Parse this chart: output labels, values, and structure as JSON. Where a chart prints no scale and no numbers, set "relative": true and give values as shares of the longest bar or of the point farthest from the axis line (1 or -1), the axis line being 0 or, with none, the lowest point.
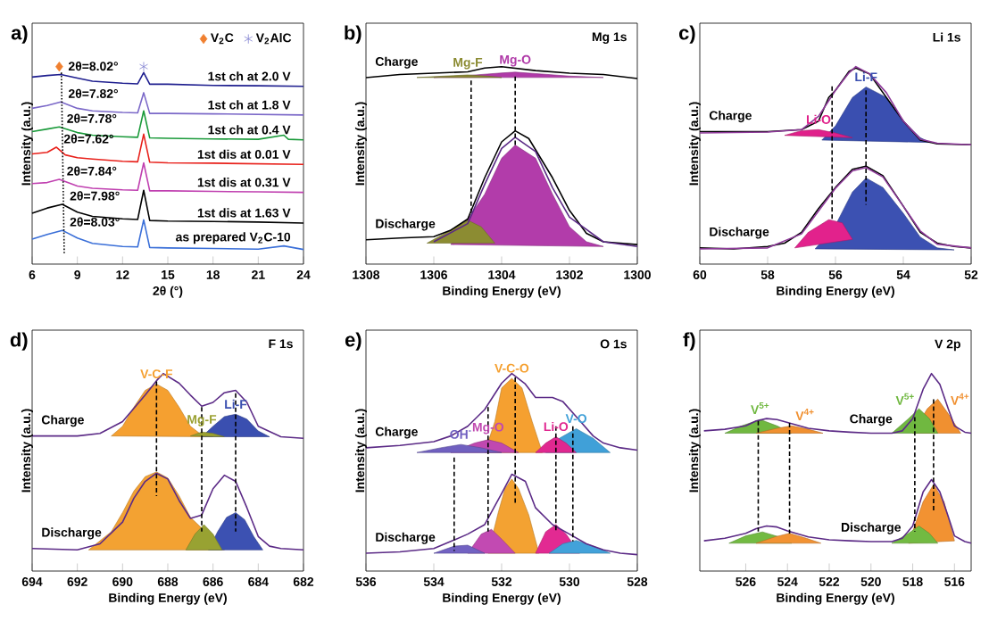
{
  "chart_data": [
    {
      "type": "line",
      "title": "a)",
      "xlabel": "2θ (°)",
      "ylabel": "Intensity (a.u.)",
      "relative": true,
      "xlim": [
        6,
        24
      ],
      "xticks": [
        6,
        9,
        12,
        15,
        18,
        21,
        24
      ],
      "legend": "top right",
      "annotations": [
        {
          "text": "2θ=8.02°",
          "x": 7.9,
          "y": 0.96
        },
        {
          "text": "2θ=7.82°",
          "x": 7.9,
          "y": 0.821
        },
        {
          "text": "2θ=7.78°",
          "x": 7.8,
          "y": 0.695
        },
        {
          "text": "2θ=7.62°",
          "x": 7.6,
          "y": 0.592
        },
        {
          "text": "2θ=7.84°",
          "x": 7.8,
          "y": 0.429
        },
        {
          "text": "2θ=7.98°",
          "x": 8,
          "y": 0.303
        },
        {
          "text": "2θ=8.03°",
          "x": 8,
          "y": 0.171
        }
      ],
      "series": [
        {
          "name": "1st ch at 2.0 V",
          "color": "#1f1f8f",
          "x": [
            6,
            7,
            7.9,
            9,
            10,
            12,
            13.0,
            13.4,
            13.8,
            15,
            18,
            21,
            24
          ],
          "values": [
            0.947,
            0.955,
            0.96,
            0.942,
            0.926,
            0.916,
            0.913,
            0.97,
            0.911,
            0.911,
            0.905,
            0.903,
            0.9
          ]
        },
        {
          "name": "1st ch at 1.8 V",
          "color": "#7b68c8",
          "x": [
            6,
            7,
            7.9,
            9,
            10,
            12,
            13.0,
            13.4,
            13.8,
            15,
            18,
            21,
            24
          ],
          "values": [
            0.789,
            0.803,
            0.821,
            0.789,
            0.776,
            0.768,
            0.766,
            0.868,
            0.763,
            0.763,
            0.761,
            0.758,
            0.755
          ]
        },
        {
          "name": "1st ch at 0.4 V",
          "color": "#1a9a3a",
          "x": [
            6,
            7,
            7.8,
            9,
            10,
            12,
            13.0,
            13.4,
            13.8,
            15,
            18,
            21,
            22.7,
            23,
            24
          ],
          "values": [
            0.671,
            0.684,
            0.695,
            0.666,
            0.653,
            0.645,
            0.642,
            0.776,
            0.639,
            0.637,
            0.634,
            0.632,
            0.653,
            0.632,
            0.629
          ]
        },
        {
          "name": "1st dis at 0.01 V",
          "color": "#e8201a",
          "x": [
            6,
            7,
            7.6,
            8.2,
            9,
            10,
            12,
            13.0,
            13.4,
            13.8,
            15,
            18,
            21,
            24
          ],
          "values": [
            0.558,
            0.566,
            0.592,
            0.553,
            0.539,
            0.532,
            0.521,
            0.518,
            0.658,
            0.516,
            0.513,
            0.511,
            0.508,
            0.505
          ]
        },
        {
          "name": "1st dis at 0.31 V",
          "color": "#c040b0",
          "x": [
            6,
            7,
            7.8,
            9,
            10,
            12,
            13.0,
            13.4,
            13.8,
            15,
            18,
            21,
            24
          ],
          "values": [
            0.408,
            0.413,
            0.429,
            0.395,
            0.384,
            0.376,
            0.374,
            0.513,
            0.371,
            0.371,
            0.368,
            0.366,
            0.363
          ]
        },
        {
          "name": "1st dis at 1.63 V",
          "color": "#000000",
          "x": [
            6,
            7,
            8,
            9,
            10,
            12,
            13.0,
            13.4,
            13.8,
            15,
            18,
            21,
            24
          ],
          "values": [
            0.258,
            0.284,
            0.303,
            0.263,
            0.242,
            0.229,
            0.226,
            0.374,
            0.221,
            0.218,
            0.216,
            0.213,
            0.208
          ]
        },
        {
          "name": "as prepared V$_{2}$C-10",
          "color": "#3a6fd8",
          "x": [
            6,
            7,
            8,
            9,
            10,
            12,
            13.0,
            13.4,
            13.8,
            15,
            18,
            21,
            22.7,
            24
          ],
          "values": [
            0.126,
            0.15,
            0.171,
            0.132,
            0.105,
            0.089,
            0.087,
            0.224,
            0.084,
            0.082,
            0.079,
            0.076,
            0.092,
            0.074
          ]
        },
        {
          "color": "#000000",
          "line_style": "dotted",
          "x": [
            7.94,
            8.13
          ],
          "values": [
            0.97,
            0.05
          ]
        },
        {
          "name": "V$_{2}$C",
          "type": "scatter",
          "marker": "diamond",
          "color": "#f08030",
          "x": [
            7.8
          ],
          "values": [
            1.0
          ]
        },
        {
          "name": "V$_{2}$AlC",
          "type": "scatter",
          "marker": "cross",
          "color": "#8080d0",
          "x": [
            13.4
          ],
          "values": [
            1.0
          ]
        }
      ]
    },
    {
      "type": "line",
      "title": "b)",
      "xlabel": "Binding Energy (eV)",
      "ylabel": "Intensity (a.u.)",
      "relative": true,
      "xlim": [
        1308,
        1300
      ],
      "xticks": [
        1308,
        1306,
        1304,
        1302,
        1300
      ],
      "annotations": [
        "Mg 1s"
      ],
      "series": [
        {
          "name": "Mg-F",
          "type": "area",
          "color": "#8a8a30",
          "x": [
            1306.5,
            1305.7,
            1305,
            1304.4,
            1304
          ],
          "values": [
            0.945,
            0.952,
            0.958,
            0.952,
            0.945
          ]
        },
        {
          "name": "Mg-O",
          "type": "area",
          "color": "#b03aa8",
          "x": [
            1306,
            1305,
            1304,
            1303.6,
            1303,
            1302,
            1301
          ],
          "values": [
            0.945,
            0.955,
            0.968,
            0.972,
            0.965,
            0.952,
            0.945
          ]
        },
        {
          "type": "area",
          "color": "#8c8c32",
          "x": [
            1306.2,
            1305.5,
            1305,
            1304.6,
            1304.2
          ],
          "values": [
            0.106,
            0.172,
            0.222,
            0.189,
            0.106
          ]
        },
        {
          "type": "area",
          "color": "#b23caa",
          "x": [
            1305.5,
            1305,
            1304.5,
            1304,
            1303.6,
            1303,
            1302.5,
            1302,
            1301.5,
            1301
          ],
          "values": [
            0.099,
            null,
            0.354,
            0.536,
            0.603,
            0.536,
            0.354,
            0.189,
            0.113,
            0.089
          ]
        },
        {
          "name": "Charge",
          "color": "#000000",
          "x": [
            1308,
            1307,
            1306,
            1305,
            1304.5,
            1304,
            1303,
            1302,
            1301,
            1300
          ],
          "values": [
            0.944,
            0.96,
            0.967,
            0.974,
            0.993,
            1.0,
            0.98,
            0.967,
            0.96,
            0.94
          ]
        },
        {
          "name": "Discharge",
          "color": "#000000",
          "x": [
            1308,
            1307,
            1306,
            1305.5,
            1305,
            1304.5,
            1304,
            1303.6,
            1303.2,
            1302.5,
            1302,
            1301.5,
            1301,
            1300
          ],
          "values": [
            0.123,
            0.132,
            0.139,
            0.172,
            0.228,
            0.437,
            0.619,
            0.675,
            0.636,
            0.437,
            0.272,
            0.156,
            0.113,
            0.099
          ]
        },
        {
          "color": "#5b2a86",
          "x": [
            1306,
            1305,
            1304.5,
            1304,
            1303.6,
            1303,
            1302.5,
            1302,
            1301,
            1300
          ],
          "values": [
            0.113,
            0.205,
            0.404,
            0.586,
            0.642,
            0.57,
            0.387,
            0.238,
            0.113,
            0.089
          ]
        },
        {
          "color": "#000000",
          "line_style": "dashed",
          "x": [
            1304.9,
            1304.9
          ],
          "values": [
            0.93,
            0.25
          ]
        },
        {
          "color": "#000000",
          "line_style": "dashed",
          "x": [
            1303.6,
            1303.6
          ],
          "values": [
            0.95,
            0.6
          ]
        }
      ]
    },
    {
      "type": "line",
      "title": "c)",
      "xlabel": "Binding Energy (eV)",
      "ylabel": "Intensity (a.u.)",
      "relative": true,
      "xlim": [
        60,
        52
      ],
      "xticks": [
        60,
        58,
        56,
        54,
        52
      ],
      "annotations": [
        "Li 1s"
      ],
      "series": [
        {
          "name": "Li-O",
          "type": "area",
          "color": "#e0208a",
          "x": [
            57.5,
            57,
            56.5,
            56,
            55.5
          ],
          "values": [
            0.652,
            0.676,
            0.681,
            0.664,
            0.64
          ]
        },
        {
          "name": "Li-F",
          "type": "area",
          "color": "#3a4fb0",
          "x": [
            56.4,
            56,
            55.5,
            55.1,
            54.5,
            54,
            53.5,
            53.2
          ],
          "values": [
            0.628,
            0.7,
            0.844,
            0.897,
            0.844,
            0.724,
            0.64,
            0.616
          ]
        },
        {
          "type": "area",
          "color": "#3c51b2",
          "x": [
            56.6,
            56,
            55.5,
            55.1,
            54.6,
            54,
            53.5,
            53,
            52.5
          ],
          "values": [
            0.077,
            0.197,
            0.365,
            0.436,
            0.388,
            0.257,
            0.137,
            0.082,
            0.072
          ]
        },
        {
          "type": "area",
          "color": "#e2228c",
          "x": [
            57.2,
            56.8,
            56.2,
            55.8,
            55.5
          ],
          "values": [
            0.082,
            0.161,
            0.225,
            0.209,
            0.125
          ]
        },
        {
          "name": "Charge",
          "color": "#000000",
          "x": [
            60,
            58,
            57,
            56.5,
            56.2,
            56,
            55.6,
            55.4,
            55,
            54.5,
            54,
            53.5,
            53,
            52
          ],
          "values": [
            0.671,
            0.671,
            0.681,
            0.724,
            0.844,
            0.88,
            0.976,
            0.993,
            0.964,
            null,
            0.724,
            0.628,
            0.609,
            0.604
          ]
        },
        {
          "color": "#8e3a9a",
          "x": [
            60,
            58,
            57,
            56.5,
            56,
            55.6,
            55.4,
            55,
            54.5,
            54,
            53.5,
            53,
            52
          ],
          "values": [
            0.664,
            0.669,
            0.681,
            0.748,
            0.88,
            0.969,
            1.0,
            0.964,
            0.868,
            0.724,
            0.633,
            0.612,
            0.604
          ]
        },
        {
          "name": "Discharge",
          "color": "#000000",
          "x": [
            60,
            59,
            58,
            57.5,
            57,
            56.5,
            56,
            55.5,
            55.1,
            54.6,
            54,
            53.5,
            53,
            52.5,
            52
          ],
          "values": [
            0.082,
            0.077,
            0.089,
            0.106,
            0.161,
            0.281,
            0.388,
            0.48,
            0.496,
            0.448,
            0.293,
            0.161,
            0.106,
            0.089,
            0.082
          ]
        },
        {
          "color": "#8e3a9a",
          "x": [
            60,
            58,
            57,
            56.5,
            56,
            55.5,
            55.1,
            54.6,
            54,
            53.5,
            53,
            52
          ],
          "values": [
            0.077,
            0.082,
            0.153,
            0.269,
            0.384,
            0.472,
            0.489,
            0.441,
            0.293,
            0.168,
            0.101,
            0.082
          ]
        },
        {
          "color": "#000000",
          "line_style": "dashed",
          "x": [
            56.1,
            56.1
          ],
          "values": [
            0.9,
            0.22
          ]
        },
        {
          "color": "#000000",
          "line_style": "dashed",
          "x": [
            55.1,
            55.1
          ],
          "values": [
            0.88,
            0.3
          ]
        }
      ]
    },
    {
      "type": "line",
      "title": "d)",
      "xlabel": "Binding Energy (eV)",
      "ylabel": "Intensity (a.u.)",
      "relative": true,
      "xlim": [
        694,
        682
      ],
      "xticks": [
        694,
        692,
        690,
        688,
        686,
        684,
        682
      ],
      "annotations": [
        "F 1s"
      ],
      "series": [
        {
          "name": "V-C-F",
          "type": "area",
          "color": "#f5a030",
          "x": [
            690.5,
            690,
            689.5,
            689,
            688.5,
            688,
            687.5,
            687,
            686.5,
            686
          ],
          "values": [
            0.684,
            0.733,
            0.83,
            0.915,
            0.947,
            0.915,
            0.83,
            0.733,
            0.689,
            0.68
          ]
        },
        {
          "name": "Mg-F",
          "type": "area",
          "color": "#9aa030",
          "x": [
            687,
            686.5,
            686,
            685.5
          ],
          "values": [
            0.684,
            0.704,
            0.697,
            0.68
          ]
        },
        {
          "name": "Li-F",
          "type": "area",
          "color": "#3a4fb0",
          "x": [
            686.5,
            686,
            685.5,
            685,
            684.5,
            684,
            683.5
          ],
          "values": [
            0.68,
            0.733,
            0.782,
            0.794,
            0.769,
            0.709,
            0.68
          ]
        },
        {
          "type": "area",
          "color": "#f3a232",
          "x": [
            691.5,
            690.5,
            690,
            689.5,
            689,
            688.5,
            688,
            687.5,
            687,
            686.5,
            686,
            685.5
          ],
          "values": [
            0.107,
            0.199,
            0.296,
            0.405,
            0.478,
            0.502,
            0.471,
            0.381,
            0.272,
            null,
            null,
            0.107
          ]
        },
        {
          "type": "area",
          "color": "#98a232",
          "x": [
            687.2,
            686.8,
            686.4,
            686,
            685.6
          ],
          "values": [
            0.107,
            0.187,
            0.235,
            0.187,
            0.107
          ]
        },
        {
          "type": "area",
          "color": "#3c51b2",
          "x": [
            686.2,
            685.8,
            685.4,
            685,
            684.6,
            684.2,
            683.8
          ],
          "values": [
            0.107,
            0.199,
            0.272,
            0.296,
            0.26,
            0.175,
            0.107
          ]
        },
        {
          "name": "Charge",
          "color": "#5b2a86",
          "x": [
            694,
            692,
            691,
            690,
            689,
            688.5,
            688.2,
            687.5,
            687,
            686.5,
            686,
            685.5,
            685,
            684.5,
            684,
            683,
            682
          ],
          "values": [
            0.684,
            0.684,
            0.697,
            0.757,
            0.891,
            0.964,
            1.0,
            0.951,
            0.891,
            0.835,
            0.854,
            0.903,
            0.915,
            0.854,
            0.733,
            0.68,
            0.672
          ]
        },
        {
          "name": "Discharge",
          "color": "#5b2a86",
          "x": [
            694,
            692,
            691,
            690,
            689.5,
            689,
            688.5,
            688,
            687.5,
            687,
            686.5,
            686,
            685.5,
            685,
            684.5,
            684,
            683.5,
            683,
            682
          ],
          "values": [
            0.114,
            0.107,
            0.138,
            0.248,
            0.369,
            0.454,
            0.495,
            0.466,
            0.357,
            0.267,
            0.284,
            0.417,
            0.485,
            0.454,
            0.32,
            0.175,
            0.126,
            0.114,
            0.107
          ]
        },
        {
          "color": "#000000",
          "line_style": "dashed",
          "x": [
            688.5,
            688.5
          ],
          "values": [
            0.96,
            0.38
          ]
        },
        {
          "color": "#000000",
          "line_style": "dashed",
          "x": [
            686.5,
            686.5
          ],
          "values": [
            0.83,
            0.2
          ]
        },
        {
          "color": "#000000",
          "line_style": "dashed",
          "x": [
            685,
            685
          ],
          "values": [
            0.9,
            0.2
          ]
        }
      ]
    },
    {
      "type": "line",
      "title": "e)",
      "xlabel": "Binding Energy (eV)",
      "ylabel": "Intensity (a.u.)",
      "relative": true,
      "xlim": [
        536,
        528
      ],
      "xticks": [
        536,
        534,
        532,
        530,
        528
      ],
      "annotations": [
        "O 1s"
      ],
      "series": [
        {
          "name": "OH$^{-}$",
          "type": "area",
          "color": "#7060c0",
          "x": [
            534.5,
            533.8,
            533.2,
            532.6,
            532
          ],
          "values": [
            0.6,
            0.624,
            0.641,
            0.624,
            0.6
          ]
        },
        {
          "name": "Mg-O",
          "type": "area",
          "color": "#c048b0",
          "x": [
            533.5,
            532.8,
            532.4,
            532,
            531.5
          ],
          "values": [
            0.6,
            0.648,
            0.665,
            0.648,
            0.6
          ]
        },
        {
          "name": "V-C-O",
          "type": "area",
          "color": "#f5a030",
          "x": [
            532.5,
            532.2,
            532,
            531.7,
            531.4,
            531.1,
            530.8
          ],
          "values": [
            0.6,
            0.757,
            0.927,
            0.976,
            0.927,
            0.757,
            0.6
          ]
        },
        {
          "name": "Li-O",
          "type": "area",
          "color": "#e02890",
          "x": [
            531,
            530.7,
            530.4,
            530.1,
            529.8
          ],
          "values": [
            0.6,
            0.648,
            0.68,
            0.648,
            0.6
          ]
        },
        {
          "name": "V-O",
          "type": "area",
          "color": "#40a0d8",
          "x": [
            530.7,
            530.3,
            529.8,
            529.3,
            528.8
          ],
          "values": [
            0.6,
            0.672,
            0.721,
            0.672,
            0.6
          ]
        },
        {
          "type": "area",
          "color": "#7262c2",
          "x": [
            534,
            533.4,
            533,
            532.5
          ],
          "values": [
            0.09,
            0.126,
            0.131,
            0.09
          ]
        },
        {
          "type": "area",
          "color": "#c24ab2",
          "x": [
            533,
            532.6,
            532.3,
            532,
            531.6
          ],
          "values": [
            0.09,
            0.187,
            0.211,
            0.162,
            0.09
          ]
        },
        {
          "type": "area",
          "color": "#f3a232",
          "x": [
            532.4,
            532.1,
            531.9,
            531.7,
            531.5,
            531.2,
            530.9
          ],
          "values": [
            0.09,
            0.296,
            0.417,
            0.466,
            0.417,
            0.284,
            0.09
          ]
        },
        {
          "type": "area",
          "color": "#e22a92",
          "x": [
            531,
            530.7,
            530.4,
            530.1,
            529.7
          ],
          "values": [
            0.09,
            0.199,
            0.235,
            0.187,
            0.09
          ]
        },
        {
          "type": "area",
          "color": "#42a2da",
          "x": [
            530.6,
            530.2,
            529.8,
            529.3,
            528.8
          ],
          "values": [
            0.09,
            0.138,
            0.155,
            0.126,
            0.09
          ]
        },
        {
          "name": "Charge",
          "color": "#5b2a86",
          "x": [
            536,
            535,
            534,
            533.5,
            533,
            532.5,
            532,
            531.7,
            531.3,
            531,
            530.5,
            530.2,
            529.8,
            529.3,
            529,
            528.5,
            528
          ],
          "values": [
            0.624,
            0.636,
            0.655,
            0.684,
            0.733,
            0.818,
            0.951,
            1.0,
            0.947,
            0.879,
            0.879,
            0.859,
            0.782,
            0.684,
            0.648,
            0.624,
            0.612
          ]
        },
        {
          "name": "Discharge",
          "color": "#5b2a86",
          "x": [
            536,
            535,
            534,
            533.5,
            533,
            532.5,
            532,
            531.7,
            531.3,
            531,
            530.5,
            530,
            529.5,
            529,
            528.5,
            528
          ],
          "values": [
            0.09,
            0.097,
            0.114,
            0.15,
            0.187,
            0.235,
            0.393,
            0.49,
            0.454,
            0.32,
            0.235,
            0.187,
            0.138,
            0.107,
            0.09,
            0.083
          ]
        },
        {
          "color": "#000000",
          "line_style": "dashed",
          "x": [
            533.4,
            533.4
          ],
          "values": [
            0.575,
            0.102
          ]
        },
        {
          "color": "#000000",
          "line_style": "dashed",
          "x": [
            532.4,
            532.4
          ],
          "values": [
            0.83,
            0.2
          ]
        },
        {
          "color": "#000000",
          "line_style": "dashed",
          "x": [
            531.6,
            531.6
          ],
          "values": [
            0.98,
            0.345
          ]
        },
        {
          "color": "#000000",
          "line_style": "dashed",
          "x": [
            530.4,
            530.4
          ],
          "values": [
            0.733,
            0.199
          ]
        },
        {
          "color": "#000000",
          "line_style": "dashed",
          "x": [
            529.9,
            529.9
          ],
          "values": [
            0.733,
            0.15
          ]
        }
      ]
    },
    {
      "type": "line",
      "title": "f)",
      "xlabel": "Binding Energy (eV)",
      "ylabel": "Intensity (a.u.)",
      "relative": true,
      "xlim": [
        528.2,
        515.2
      ],
      "xticks": [
        526,
        524,
        522,
        520,
        518,
        516
      ],
      "annotations": [
        "V 2p"
      ],
      "series": [
        {
          "name": "V$^{5+}$",
          "type": "area",
          "color": "#70b840",
          "x": [
            527,
            526.2,
            525.3,
            524.5,
            523.8
          ],
          "values": [
            0.698,
            0.735,
            0.767,
            0.735,
            0.698
          ]
        },
        {
          "name": "V$^{4+}$",
          "type": "area",
          "color": "#f09030",
          "x": [
            525.5,
            524.5,
            523.8,
            523,
            522.3
          ],
          "values": [
            0.698,
            0.723,
            0.735,
            0.718,
            0.698
          ]
        },
        {
          "name": "V$^{5+}$",
          "type": "area",
          "color": "#70b840",
          "x": [
            519,
            518.2,
            517.7,
            517.2,
            516.8
          ],
          "values": [
            0.698,
            0.772,
            0.822,
            0.772,
            0.698
          ]
        },
        {
          "name": "V$^{4+}$",
          "type": "area",
          "color": "#f09030",
          "x": [
            518,
            517.3,
            516.8,
            516.3,
            515.7
          ],
          "values": [
            0.698,
            0.822,
            0.871,
            0.797,
            0.698
          ]
        },
        {
          "type": "area",
          "color": "#72ba42",
          "x": [
            526.8,
            526,
            525.2,
            524.4,
            523.8
          ],
          "values": [
            0.141,
            0.178,
            0.198,
            0.173,
            0.141
          ]
        },
        {
          "type": "area",
          "color": "#f29232",
          "x": [
            525.5,
            524.6,
            523.9,
            523.1,
            522.4
          ],
          "values": [
            0.141,
            0.173,
            0.191,
            0.166,
            0.141
          ]
        },
        {
          "type": "area",
          "color": "#72ba42",
          "x": [
            519,
            518.2,
            517.7,
            517.2,
            516.8
          ],
          "values": [
            0.141,
            0.191,
            0.228,
            0.191,
            0.141
          ]
        },
        {
          "type": "area",
          "color": "#f29232",
          "x": [
            518.2,
            517.5,
            517,
            516.5,
            516
          ],
          "values": [
            0.141,
            0.351,
            0.438,
            0.351,
            0.153
          ]
        },
        {
          "name": "Charge",
          "color": "#5b2a86",
          "x": [
            528,
            527,
            526,
            525.5,
            525,
            524.5,
            524,
            523,
            522,
            521,
            520,
            519,
            518.5,
            518,
            517.5,
            517.1,
            516.7,
            516.3,
            516,
            515.5,
            515.2
          ],
          "values": [
            0.71,
            0.718,
            0.735,
            0.76,
            0.772,
            0.767,
            0.752,
            0.723,
            0.71,
            0.703,
            0.698,
            0.698,
            0.71,
            0.772,
            0.921,
            1.0,
            0.946,
            0.822,
            0.735,
            0.703,
            0.698
          ]
        },
        {
          "name": "Discharge",
          "color": "#5b2a86",
          "x": [
            528,
            527,
            526,
            525.5,
            525,
            524.5,
            524,
            523,
            522,
            521,
            520,
            519,
            518.5,
            518,
            517.5,
            517.1,
            516.7,
            516.3,
            516,
            515.5,
            515.2
          ],
          "values": [
            0.153,
            0.166,
            0.191,
            0.215,
            0.228,
            0.223,
            0.203,
            0.173,
            0.158,
            0.153,
            0.149,
            0.149,
            0.166,
            0.228,
            0.401,
            0.463,
            0.401,
            0.277,
            0.178,
            0.149,
            0.141
          ]
        },
        {
          "color": "#000000",
          "line_style": "dashed",
          "x": [
            525.4,
            525.4
          ],
          "values": [
            0.76,
            0.2
          ]
        },
        {
          "color": "#000000",
          "line_style": "dashed",
          "x": [
            523.9,
            523.9
          ],
          "values": [
            0.75,
            0.19
          ]
        },
        {
          "color": "#000000",
          "line_style": "dashed",
          "x": [
            517.9,
            517.9
          ],
          "values": [
            0.78,
            0.2
          ]
        },
        {
          "color": "#000000",
          "line_style": "dashed",
          "x": [
            517,
            517
          ],
          "values": [
            0.87,
            0.3
          ]
        }
      ]
    }
  ]
}
